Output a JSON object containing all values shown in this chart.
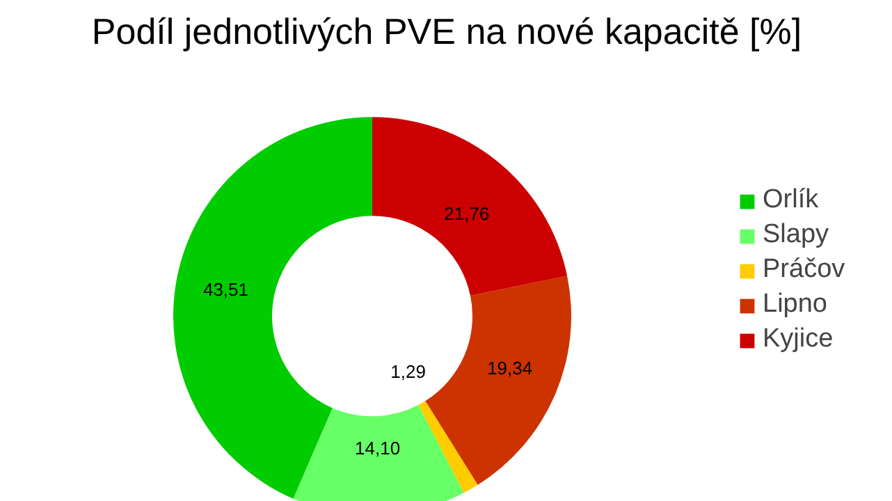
{
  "chart_data": {
    "type": "donut",
    "title": "Podíl jednotlivých PVE na nové kapacitě [%]",
    "categories": [
      "Orlík",
      "Slapy",
      "Práčov",
      "Lipno",
      "Kyjice"
    ],
    "values": [
      43.51,
      14.1,
      1.29,
      19.34,
      21.76
    ],
    "colors": [
      "#00cc00",
      "#66ff66",
      "#ffcc00",
      "#cc3300",
      "#cc0000"
    ],
    "value_labels": [
      "43,51",
      "14,10",
      "1,29",
      "19,34",
      "21,76"
    ],
    "legend": "right"
  }
}
